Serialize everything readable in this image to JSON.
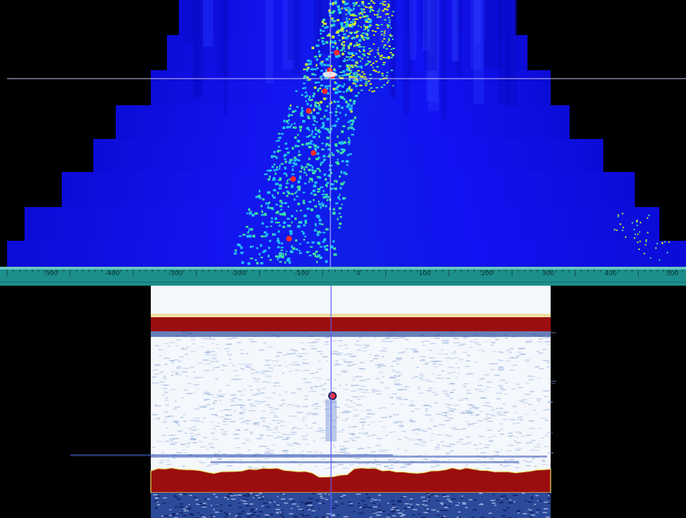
{
  "axis": {
    "tick_labels": [
      "-500",
      "-400",
      "-300",
      "-200",
      "-100",
      "0",
      "100",
      "200",
      "300",
      "400",
      "500"
    ]
  },
  "colors": {
    "background": "#000000",
    "sonar_base": "#1010f0",
    "sonar_scatter": [
      "#20c0ff",
      "#40e0a0",
      "#d0f030",
      "#ff3030"
    ],
    "ruler": "#1c8f8c",
    "crosshair": "#c8c8ff",
    "echogram_bottom_line": "#a01010"
  },
  "icons": {
    "crosshair": "crosshair-icon"
  }
}
